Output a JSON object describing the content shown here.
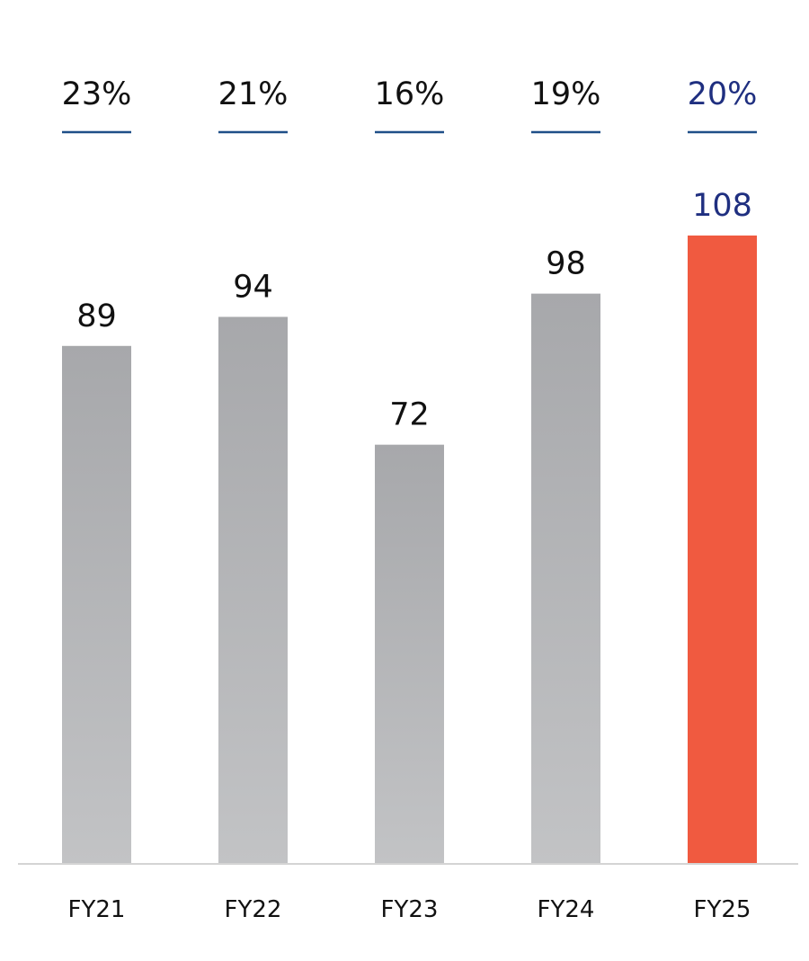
{
  "chart_data": {
    "type": "bar",
    "title": "",
    "xlabel": "",
    "ylabel": "",
    "categories": [
      "FY21",
      "FY22",
      "FY23",
      "FY24",
      "FY25"
    ],
    "values": [
      89,
      94,
      72,
      98,
      108
    ],
    "value_labels": [
      "89",
      "94",
      "72",
      "98",
      "108"
    ],
    "percentages": [
      "23%",
      "21%",
      "16%",
      "19%",
      "20%"
    ],
    "ylim": [
      0,
      108
    ],
    "grid": false,
    "highlight_index": 4
  },
  "colors": {
    "bar_gray_top": "#a7a8ab",
    "bar_gray_bottom": "#c2c3c5",
    "bar_highlight": "#f05a40",
    "text_default": "#111111",
    "text_highlight": "#1f2f80",
    "underline": "#1f4f88",
    "baseline": "#d4d4d4"
  }
}
